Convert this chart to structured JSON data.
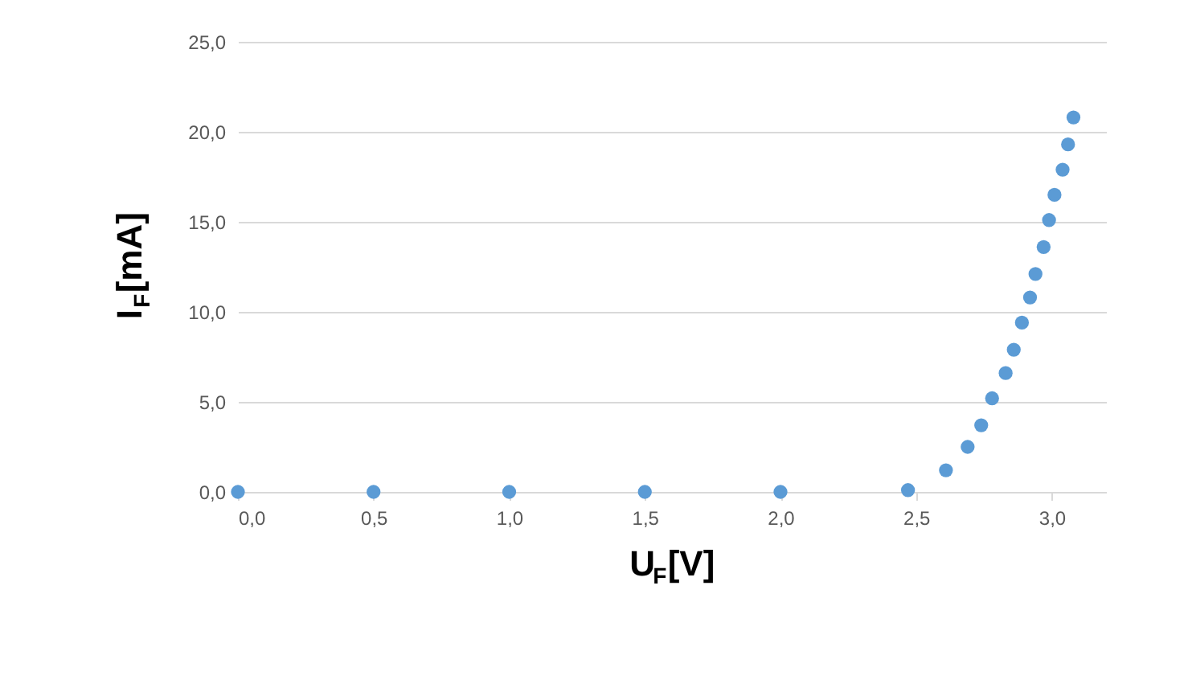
{
  "chart_data": {
    "type": "scatter",
    "xlabel": "U$_{F}$[V]",
    "ylabel": "I$_{F}$[mA]",
    "x": [
      0.0,
      0.5,
      1.0,
      1.5,
      2.0,
      2.47,
      2.61,
      2.69,
      2.74,
      2.78,
      2.83,
      2.86,
      2.89,
      2.92,
      2.94,
      2.97,
      2.99,
      3.01,
      3.04,
      3.06,
      3.08
    ],
    "series": [
      {
        "color": "#5b9bd5",
        "values": [
          0,
          0,
          0,
          0,
          0,
          0.1,
          1.2,
          2.5,
          3.7,
          5.2,
          6.6,
          7.9,
          9.4,
          10.8,
          12.1,
          13.6,
          15.1,
          16.5,
          17.9,
          19.3,
          20.8
        ]
      }
    ],
    "xlim": [
      0,
      3.2
    ],
    "ylim": [
      0,
      25
    ],
    "xticks": [
      {
        "value": 0,
        "label": "0,0"
      },
      {
        "value": 0.5,
        "label": "0,5"
      },
      {
        "value": 1,
        "label": "1,0"
      },
      {
        "value": 1.5,
        "label": "1,5"
      },
      {
        "value": 2,
        "label": "2,0"
      },
      {
        "value": 2.5,
        "label": "2,5"
      },
      {
        "value": 3,
        "label": "3,0"
      }
    ],
    "yticks": [
      {
        "value": 0,
        "label": "0,0"
      },
      {
        "value": 5,
        "label": "5,0"
      },
      {
        "value": 10,
        "label": "10,0"
      },
      {
        "value": 15,
        "label": "15,0"
      },
      {
        "value": 20,
        "label": "20,0"
      },
      {
        "value": 25,
        "label": "25,0"
      }
    ],
    "grid": "y",
    "marker": "circle",
    "legend": false
  }
}
